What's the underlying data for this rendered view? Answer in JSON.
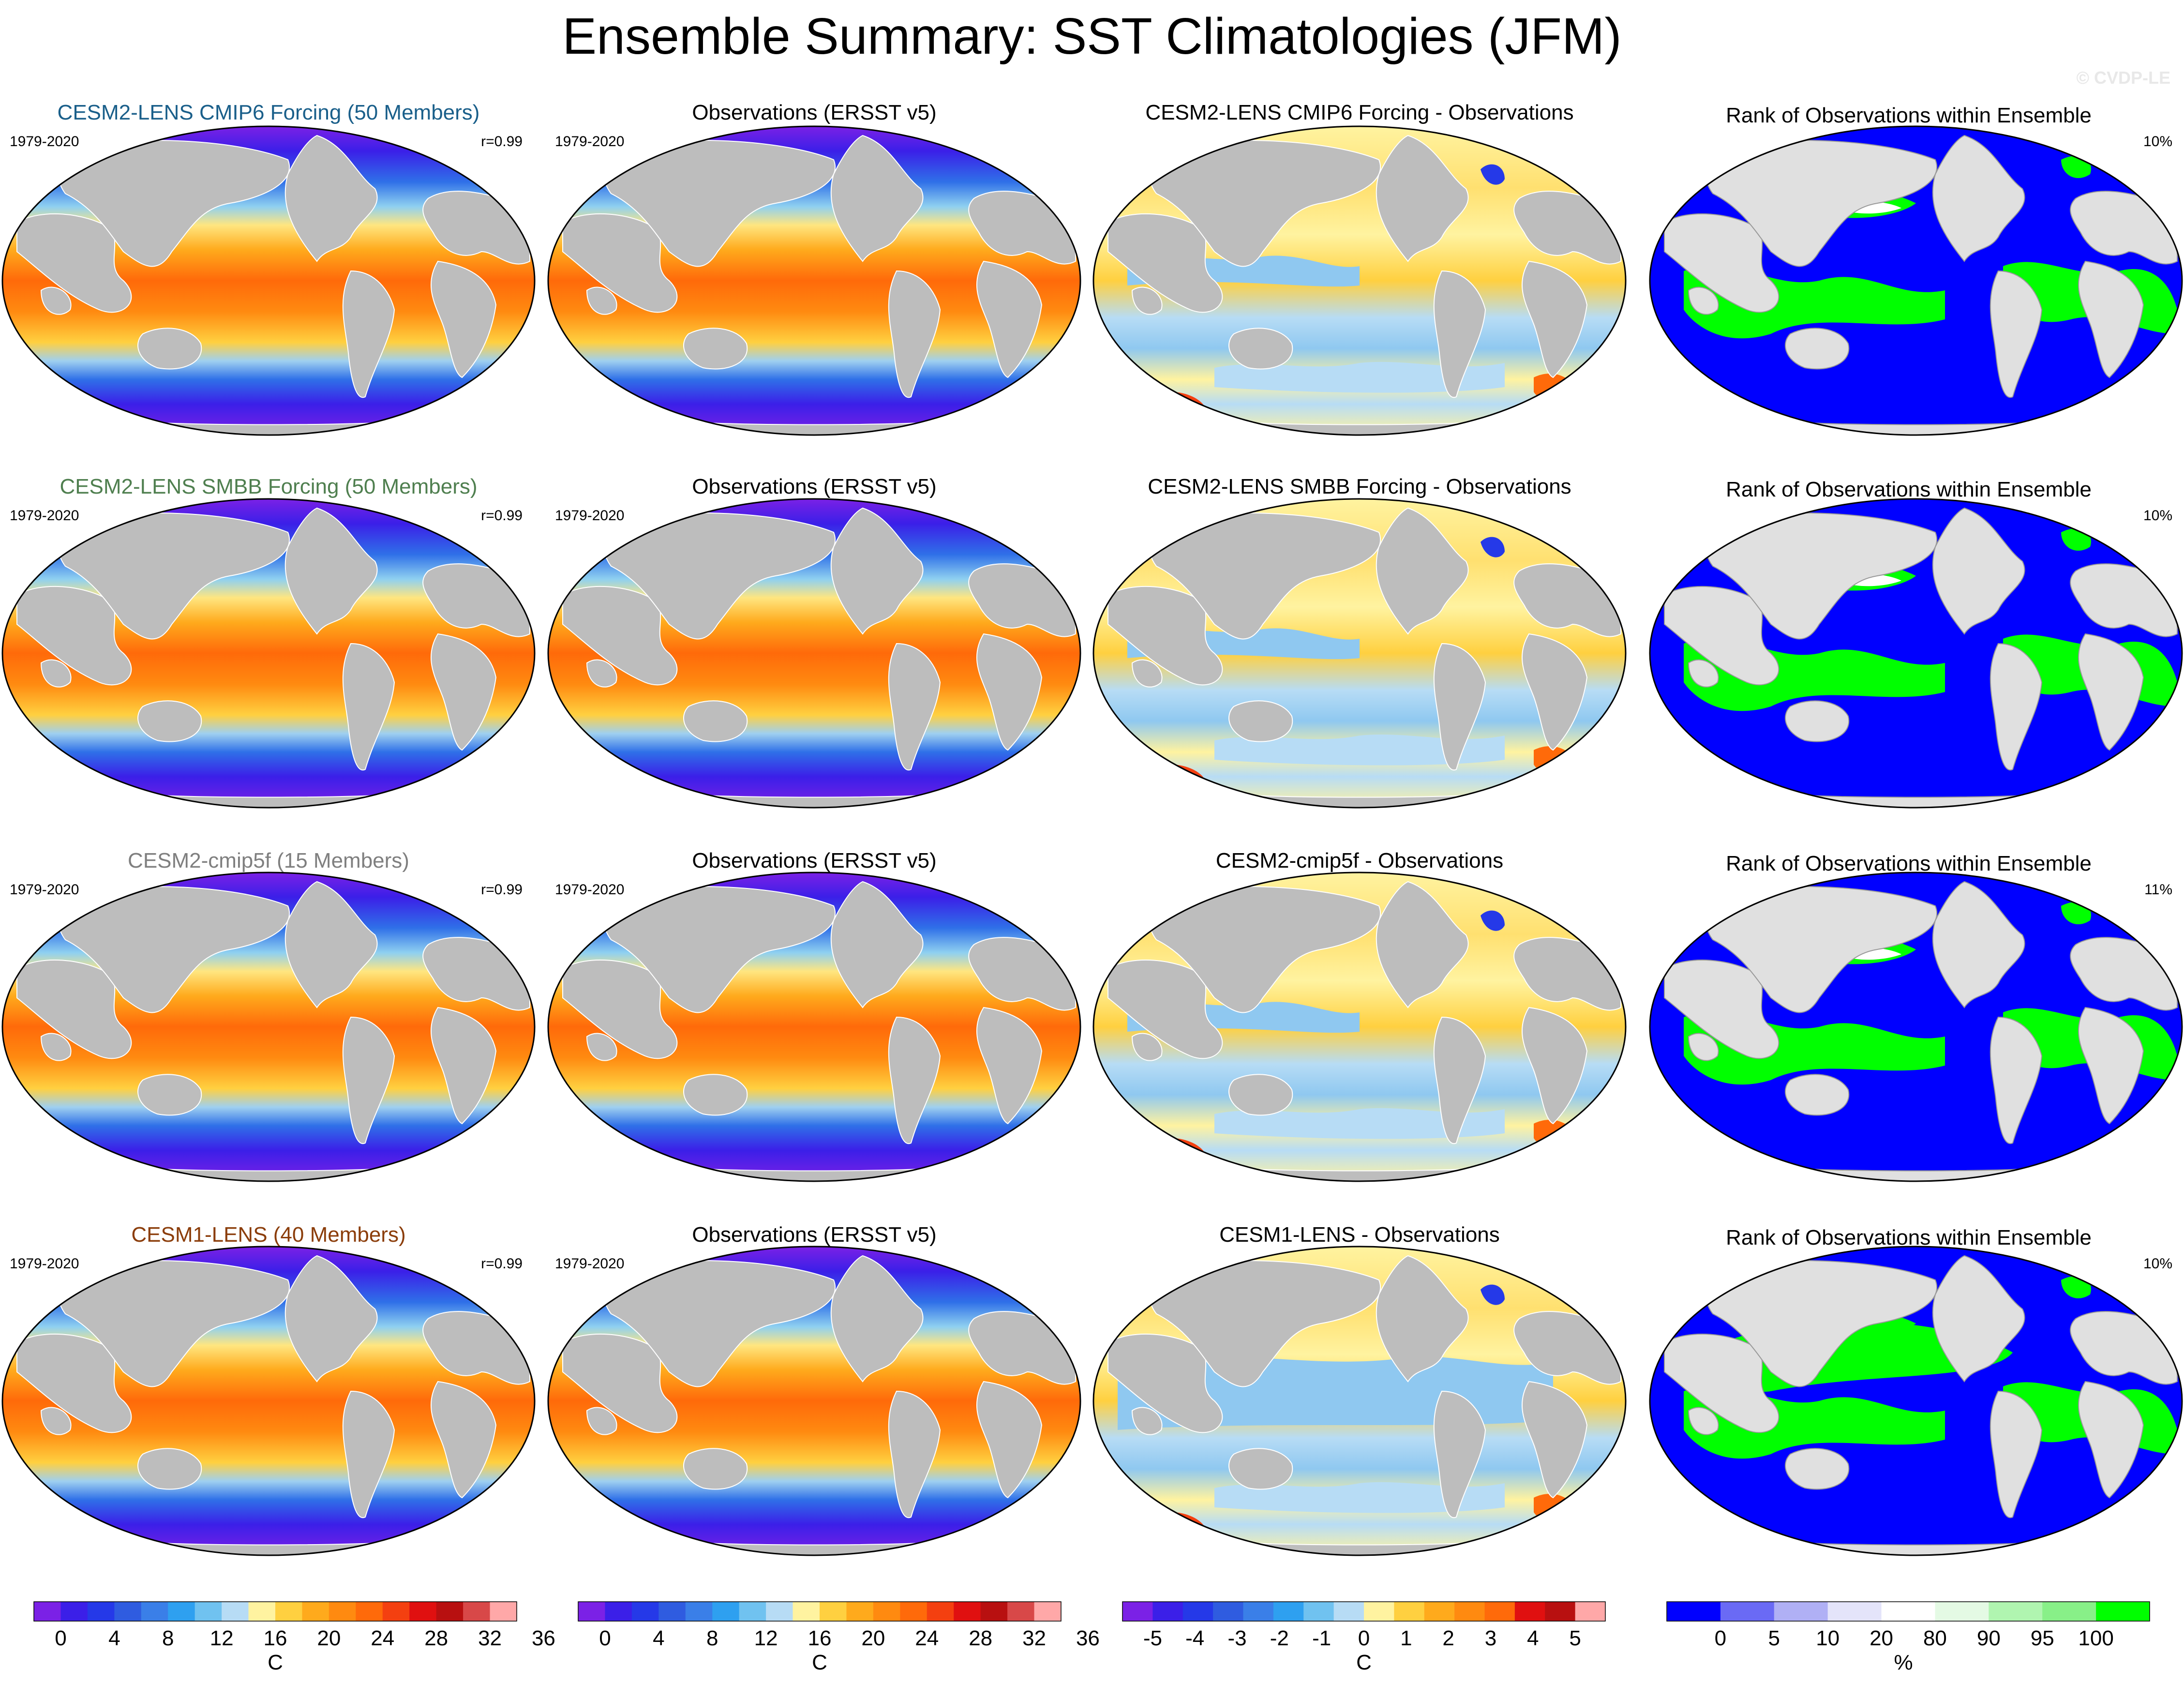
{
  "title": "Ensemble Summary: SST Climatologies (JFM)",
  "watermark": "© CVDP-LE",
  "period": "1979-2020",
  "obs_title": "Observations (ERSST v5)",
  "rank_title": "Rank of Observations within Ensemble",
  "rows": [
    {
      "model_title": "CESM2-LENS CMIP6 Forcing (50 Members)",
      "title_color": "#1a5f8a",
      "r": "r=0.99",
      "diff_title": "CESM2-LENS CMIP6 Forcing - Observations",
      "rank_pct": "10%"
    },
    {
      "model_title": "CESM2-LENS SMBB Forcing (50 Members)",
      "title_color": "#4f7f4f",
      "r": "r=0.99",
      "diff_title": "CESM2-LENS SMBB Forcing - Observations",
      "rank_pct": "10%"
    },
    {
      "model_title": "CESM2-cmip5f (15 Members)",
      "title_color": "#7f7f7f",
      "r": "r=0.99",
      "diff_title": "CESM2-cmip5f - Observations",
      "rank_pct": "11%"
    },
    {
      "model_title": "CESM1-LENS (40 Members)",
      "title_color": "#8b3d0a",
      "r": "r=0.99",
      "diff_title": "CESM1-LENS - Observations",
      "rank_pct": "10%"
    }
  ],
  "chart_data": [
    {
      "type": "heatmap",
      "name": "SST climatology colorbar",
      "unit": "C",
      "tick_labels": [
        "0",
        "4",
        "8",
        "12",
        "16",
        "20",
        "24",
        "28",
        "32",
        "36"
      ],
      "colors": [
        "#7b21e6",
        "#3b1fe8",
        "#2539e8",
        "#2f5ce0",
        "#3a7fe8",
        "#2ea0f0",
        "#70c2f0",
        "#b7dcf5",
        "#fff3a0",
        "#ffd040",
        "#ffaa1c",
        "#ff8a10",
        "#ff6a0a",
        "#f44010",
        "#e01010",
        "#b81010",
        "#d84848",
        "#ffa8a8"
      ]
    },
    {
      "type": "heatmap",
      "name": "Model minus observations colorbar",
      "unit": "C",
      "tick_labels": [
        "-5",
        "-4",
        "-3",
        "-2",
        "-1",
        "0",
        "1",
        "2",
        "3",
        "4",
        "5"
      ],
      "colors": [
        "#7b21e6",
        "#3b1fe8",
        "#2539e8",
        "#2f5ce0",
        "#3a7fe8",
        "#2ea0f0",
        "#70c2f0",
        "#b7dcf5",
        "#fff3a0",
        "#ffd040",
        "#ffaa1c",
        "#ff8a10",
        "#ff6a0a",
        "#e01010",
        "#b81010",
        "#ffa8a8"
      ]
    },
    {
      "type": "heatmap",
      "name": "Rank colorbar",
      "unit": "%",
      "tick_labels": [
        "0",
        "5",
        "10",
        "20",
        "80",
        "90",
        "95",
        "100"
      ],
      "colors": [
        "#0000ff",
        "#6a6af5",
        "#b0b0f5",
        "#e4e4fa",
        "#ffffff",
        "#e4fae4",
        "#b0f5b0",
        "#88f088",
        "#00ff00"
      ]
    }
  ]
}
